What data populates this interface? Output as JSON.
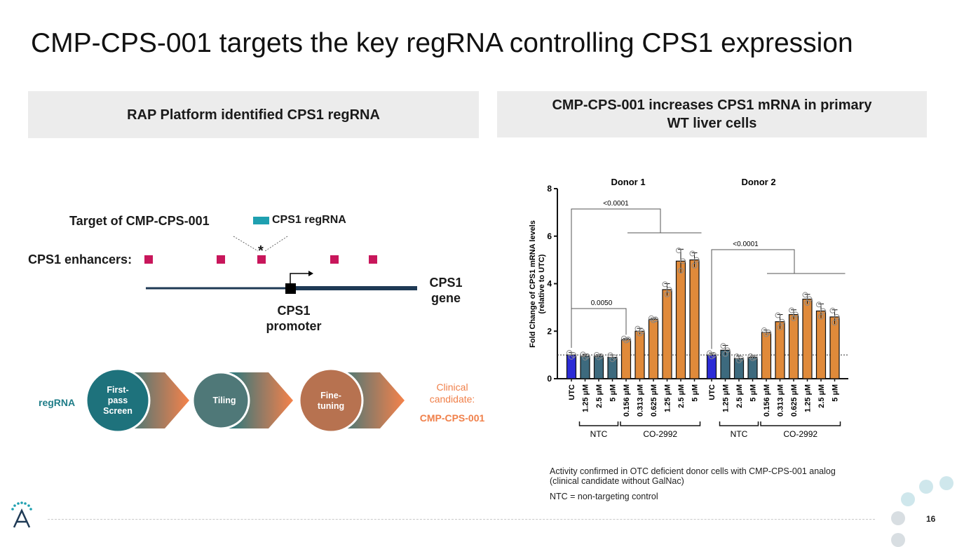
{
  "title": "CMP-CPS-001 targets the key regRNA controlling CPS1 expression",
  "left_panel": {
    "header": "RAP Platform identified CPS1 regRNA",
    "target_label": "Target of CMP-CPS-001",
    "legend_label": "CPS1 regRNA",
    "asterisk": "*",
    "enhancers_label": "CPS1 enhancers:",
    "gene_label_line1": "CPS1",
    "gene_label_line2": "gene",
    "promoter_label_line1": "CPS1",
    "promoter_label_line2": "promoter",
    "workflow": {
      "start_label": "regRNA",
      "steps": [
        "First-",
        "pass",
        "Screen"
      ],
      "step2": "Tiling",
      "step3_line1": "Fine-",
      "step3_line2": "tuning",
      "end_line1": "Clinical",
      "end_line2": "candidate:",
      "end_name": "CMP-CPS-001"
    },
    "colors": {
      "enhancer": "#c8165b",
      "regrna": "#1fa0b0",
      "gene_line": "#1f3a55",
      "clinical": "#f0804a"
    }
  },
  "right_panel": {
    "header_line1": "CMP-CPS-001 increases CPS1 mRNA in primary",
    "header_line2": "WT liver cells",
    "footnote1_line1": "Activity confirmed in OTC deficient donor cells with CMP-CPS-001 analog",
    "footnote1_line2": "(clinical candidate without GalNac)",
    "footnote2": "NTC = non-targeting control"
  },
  "chart_data": {
    "type": "bar",
    "ylabel_line1": "Fold Change of CPS1 mRNA levels",
    "ylabel_line2": "(relative to UTC)",
    "ylim": [
      0,
      8
    ],
    "yticks": [
      "0",
      "2",
      "4",
      "6",
      "8"
    ],
    "reference_line": 1,
    "panels": [
      {
        "name": "Donor 1",
        "categories": [
          "UTC",
          "1.25 µM",
          "2.5 µM",
          "5 µM",
          "0.156 µM",
          "0.313 µM",
          "0.625 µM",
          "1.25 µM",
          "2.5 µM",
          "5 µM"
        ],
        "values": [
          1.0,
          0.95,
          0.95,
          0.9,
          1.65,
          2.0,
          2.5,
          3.75,
          4.95,
          5.0
        ],
        "errors": [
          0.1,
          0.08,
          0.06,
          0.1,
          0.05,
          0.12,
          0.05,
          0.25,
          0.5,
          0.3
        ],
        "groups": [
          "UTC",
          "NTC",
          "NTC",
          "NTC",
          "CO-2992",
          "CO-2992",
          "CO-2992",
          "CO-2992",
          "CO-2992",
          "CO-2992"
        ],
        "pvalues": [
          "<0.0001",
          "0.0050"
        ]
      },
      {
        "name": "Donor 2",
        "categories": [
          "UTC",
          "1.25 µM",
          "2.5 µM",
          "5 µM",
          "0.156 µM",
          "0.313 µM",
          "0.625 µM",
          "1.25 µM",
          "2.5 µM",
          "5 µM"
        ],
        "values": [
          1.0,
          1.2,
          0.85,
          0.9,
          1.95,
          2.4,
          2.7,
          3.35,
          2.85,
          2.6
        ],
        "errors": [
          0.08,
          0.2,
          0.1,
          0.05,
          0.1,
          0.3,
          0.2,
          0.2,
          0.3,
          0.3
        ],
        "groups": [
          "UTC",
          "NTC",
          "NTC",
          "NTC",
          "CO-2992",
          "CO-2992",
          "CO-2992",
          "CO-2992",
          "CO-2992",
          "CO-2992"
        ],
        "pvalues": [
          "<0.0001"
        ]
      }
    ],
    "group_labels": [
      "NTC",
      "CO-2992"
    ],
    "colors": {
      "utc": "#2b2bd6",
      "ntc": "#3d6a7e",
      "co2992": "#e08a3a"
    }
  },
  "page_number": "16"
}
